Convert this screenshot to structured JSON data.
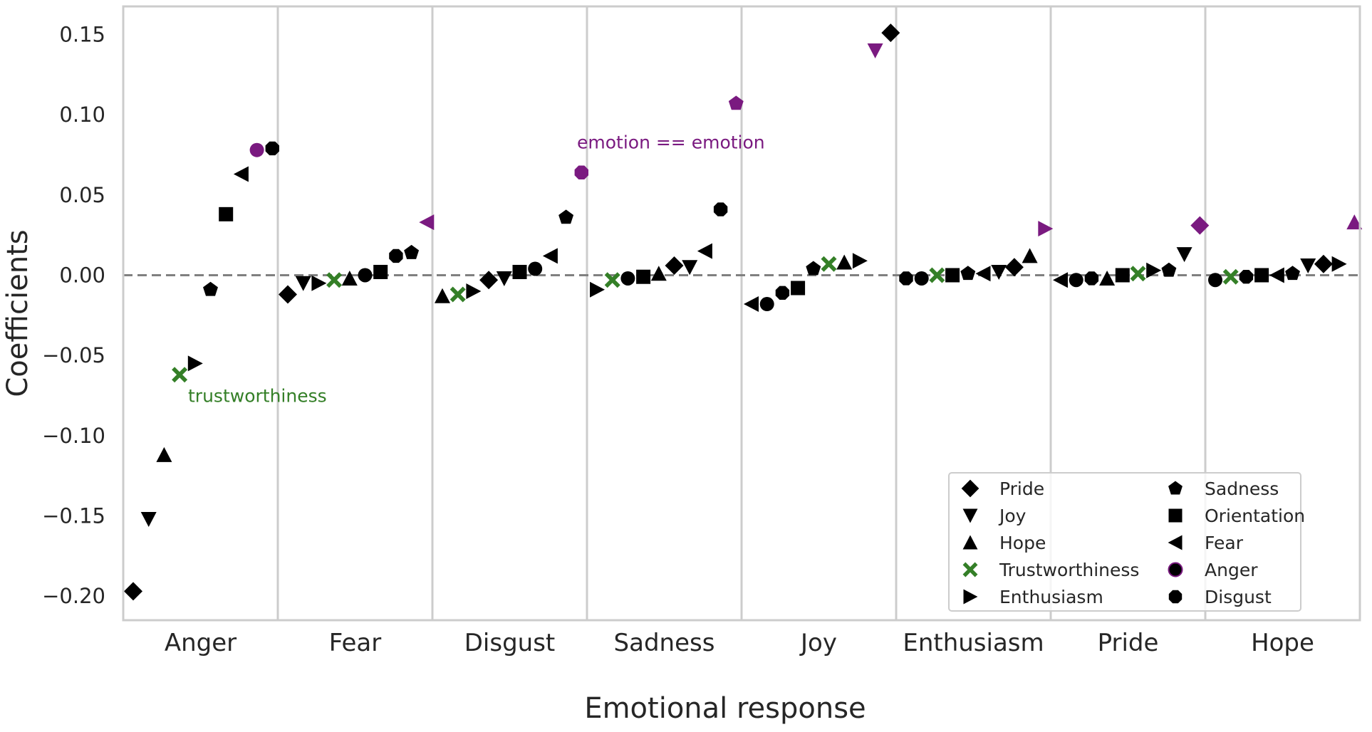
{
  "chart_data": {
    "type": "scatter",
    "title": "",
    "xlabel": "Emotional response",
    "ylabel": "Coefficients",
    "ylim": [
      -0.215,
      0.1675
    ],
    "yticks": [
      0.15,
      0.1,
      0.05,
      0.0,
      -0.05,
      -0.1,
      -0.15,
      -0.2
    ],
    "ytick_labels": [
      "0.15",
      "0.10",
      "0.05",
      "0.00",
      "−0.05",
      "−0.10",
      "−0.15",
      "−0.20"
    ],
    "reference_line": {
      "y": 0.0,
      "style": "dashed",
      "color": "#808080"
    },
    "categories": [
      "Anger",
      "Fear",
      "Disgust",
      "Sadness",
      "Joy",
      "Enthusiasm",
      "Pride",
      "Hope"
    ],
    "grid": "vertical category dividers",
    "colors": {
      "default": "#000000",
      "highlight": "#7a1a80",
      "trustworthiness": "#347f27",
      "frame": "#cccccc"
    },
    "predictors": [
      {
        "name": "Pride",
        "marker": "diamond"
      },
      {
        "name": "Joy",
        "marker": "triangle-down"
      },
      {
        "name": "Hope",
        "marker": "triangle-up"
      },
      {
        "name": "Trustworthiness",
        "marker": "x-filled"
      },
      {
        "name": "Enthusiasm",
        "marker": "triangle-right"
      },
      {
        "name": "Sadness",
        "marker": "pentagon"
      },
      {
        "name": "Orientation",
        "marker": "square"
      },
      {
        "name": "Fear",
        "marker": "triangle-left"
      },
      {
        "name": "Anger",
        "marker": "circle"
      },
      {
        "name": "Disgust",
        "marker": "octagon"
      }
    ],
    "groups": [
      {
        "category": "Anger",
        "points": [
          {
            "predictor": "Pride",
            "value": -0.197
          },
          {
            "predictor": "Joy",
            "value": -0.152
          },
          {
            "predictor": "Hope",
            "value": -0.112
          },
          {
            "predictor": "Trustworthiness",
            "value": -0.062
          },
          {
            "predictor": "Enthusiasm",
            "value": -0.055
          },
          {
            "predictor": "Sadness",
            "value": -0.009
          },
          {
            "predictor": "Orientation",
            "value": 0.038
          },
          {
            "predictor": "Fear",
            "value": 0.063
          },
          {
            "predictor": "Anger",
            "value": 0.078
          },
          {
            "predictor": "Disgust",
            "value": 0.079
          }
        ]
      },
      {
        "category": "Fear",
        "points": [
          {
            "predictor": "Pride",
            "value": -0.012
          },
          {
            "predictor": "Joy",
            "value": -0.005
          },
          {
            "predictor": "Enthusiasm",
            "value": -0.005
          },
          {
            "predictor": "Trustworthiness",
            "value": -0.003
          },
          {
            "predictor": "Hope",
            "value": -0.002
          },
          {
            "predictor": "Anger",
            "value": 0.0
          },
          {
            "predictor": "Orientation",
            "value": 0.002
          },
          {
            "predictor": "Disgust",
            "value": 0.012
          },
          {
            "predictor": "Sadness",
            "value": 0.014
          },
          {
            "predictor": "Fear",
            "value": 0.033
          }
        ]
      },
      {
        "category": "Disgust",
        "points": [
          {
            "predictor": "Hope",
            "value": -0.013
          },
          {
            "predictor": "Trustworthiness",
            "value": -0.012
          },
          {
            "predictor": "Enthusiasm",
            "value": -0.01
          },
          {
            "predictor": "Pride",
            "value": -0.003
          },
          {
            "predictor": "Joy",
            "value": -0.002
          },
          {
            "predictor": "Orientation",
            "value": 0.002
          },
          {
            "predictor": "Anger",
            "value": 0.004
          },
          {
            "predictor": "Fear",
            "value": 0.012
          },
          {
            "predictor": "Sadness",
            "value": 0.036
          },
          {
            "predictor": "Disgust",
            "value": 0.064
          }
        ]
      },
      {
        "category": "Sadness",
        "points": [
          {
            "predictor": "Enthusiasm",
            "value": -0.009
          },
          {
            "predictor": "Trustworthiness",
            "value": -0.003
          },
          {
            "predictor": "Anger",
            "value": -0.002
          },
          {
            "predictor": "Orientation",
            "value": -0.001
          },
          {
            "predictor": "Hope",
            "value": 0.001
          },
          {
            "predictor": "Pride",
            "value": 0.006
          },
          {
            "predictor": "Joy",
            "value": 0.005
          },
          {
            "predictor": "Fear",
            "value": 0.015
          },
          {
            "predictor": "Disgust",
            "value": 0.041
          },
          {
            "predictor": "Sadness",
            "value": 0.107
          }
        ]
      },
      {
        "category": "Joy",
        "points": [
          {
            "predictor": "Fear",
            "value": -0.018
          },
          {
            "predictor": "Anger",
            "value": -0.018
          },
          {
            "predictor": "Disgust",
            "value": -0.011
          },
          {
            "predictor": "Orientation",
            "value": -0.008
          },
          {
            "predictor": "Sadness",
            "value": 0.004
          },
          {
            "predictor": "Trustworthiness",
            "value": 0.007
          },
          {
            "predictor": "Hope",
            "value": 0.008
          },
          {
            "predictor": "Enthusiasm",
            "value": 0.009
          },
          {
            "predictor": "Joy",
            "value": 0.14
          },
          {
            "predictor": "Pride",
            "value": 0.151
          }
        ]
      },
      {
        "category": "Enthusiasm",
        "points": [
          {
            "predictor": "Disgust",
            "value": -0.002
          },
          {
            "predictor": "Anger",
            "value": -0.002
          },
          {
            "predictor": "Trustworthiness",
            "value": 0.0
          },
          {
            "predictor": "Orientation",
            "value": 0.0
          },
          {
            "predictor": "Sadness",
            "value": 0.001
          },
          {
            "predictor": "Fear",
            "value": 0.001
          },
          {
            "predictor": "Joy",
            "value": 0.002
          },
          {
            "predictor": "Pride",
            "value": 0.005
          },
          {
            "predictor": "Hope",
            "value": 0.012
          },
          {
            "predictor": "Enthusiasm",
            "value": 0.029
          }
        ]
      },
      {
        "category": "Pride",
        "points": [
          {
            "predictor": "Fear",
            "value": -0.003
          },
          {
            "predictor": "Anger",
            "value": -0.003
          },
          {
            "predictor": "Disgust",
            "value": -0.002
          },
          {
            "predictor": "Hope",
            "value": -0.002
          },
          {
            "predictor": "Orientation",
            "value": 0.0
          },
          {
            "predictor": "Trustworthiness",
            "value": 0.001
          },
          {
            "predictor": "Enthusiasm",
            "value": 0.003
          },
          {
            "predictor": "Sadness",
            "value": 0.003
          },
          {
            "predictor": "Joy",
            "value": 0.013
          },
          {
            "predictor": "Pride",
            "value": 0.031
          }
        ]
      },
      {
        "category": "Hope",
        "points": [
          {
            "predictor": "Anger",
            "value": -0.003
          },
          {
            "predictor": "Trustworthiness",
            "value": -0.001
          },
          {
            "predictor": "Disgust",
            "value": -0.001
          },
          {
            "predictor": "Orientation",
            "value": 0.0
          },
          {
            "predictor": "Fear",
            "value": 0.0
          },
          {
            "predictor": "Sadness",
            "value": 0.001
          },
          {
            "predictor": "Joy",
            "value": 0.006
          },
          {
            "predictor": "Pride",
            "value": 0.007
          },
          {
            "predictor": "Enthusiasm",
            "value": 0.007
          },
          {
            "predictor": "Hope",
            "value": 0.033
          }
        ]
      }
    ],
    "annotations": [
      {
        "text": "trustworthiness",
        "color": "#347f27",
        "anchor_category": "Anger",
        "anchor_value": -0.075
      },
      {
        "text": "emotion == emotion",
        "color": "#7a1a80",
        "anchor_category": "Sadness",
        "anchor_value": 0.083
      }
    ],
    "legend": {
      "placement": "lower-right",
      "columns": 2,
      "entries": [
        {
          "label": "Pride",
          "marker": "diamond",
          "color": "#000000"
        },
        {
          "label": "Joy",
          "marker": "triangle-down",
          "color": "#000000"
        },
        {
          "label": "Hope",
          "marker": "triangle-up",
          "color": "#000000"
        },
        {
          "label": "Trustworthiness",
          "marker": "x-filled",
          "color": "#347f27"
        },
        {
          "label": "Enthusiasm",
          "marker": "triangle-right",
          "color": "#000000"
        },
        {
          "label": "Sadness",
          "marker": "pentagon",
          "color": "#000000"
        },
        {
          "label": "Orientation",
          "marker": "square",
          "color": "#000000"
        },
        {
          "label": "Fear",
          "marker": "triangle-left",
          "color": "#000000"
        },
        {
          "label": "Anger",
          "marker": "circle",
          "color": "#000000",
          "edge": "#7a1a80"
        },
        {
          "label": "Disgust",
          "marker": "octagon",
          "color": "#000000"
        }
      ]
    }
  }
}
